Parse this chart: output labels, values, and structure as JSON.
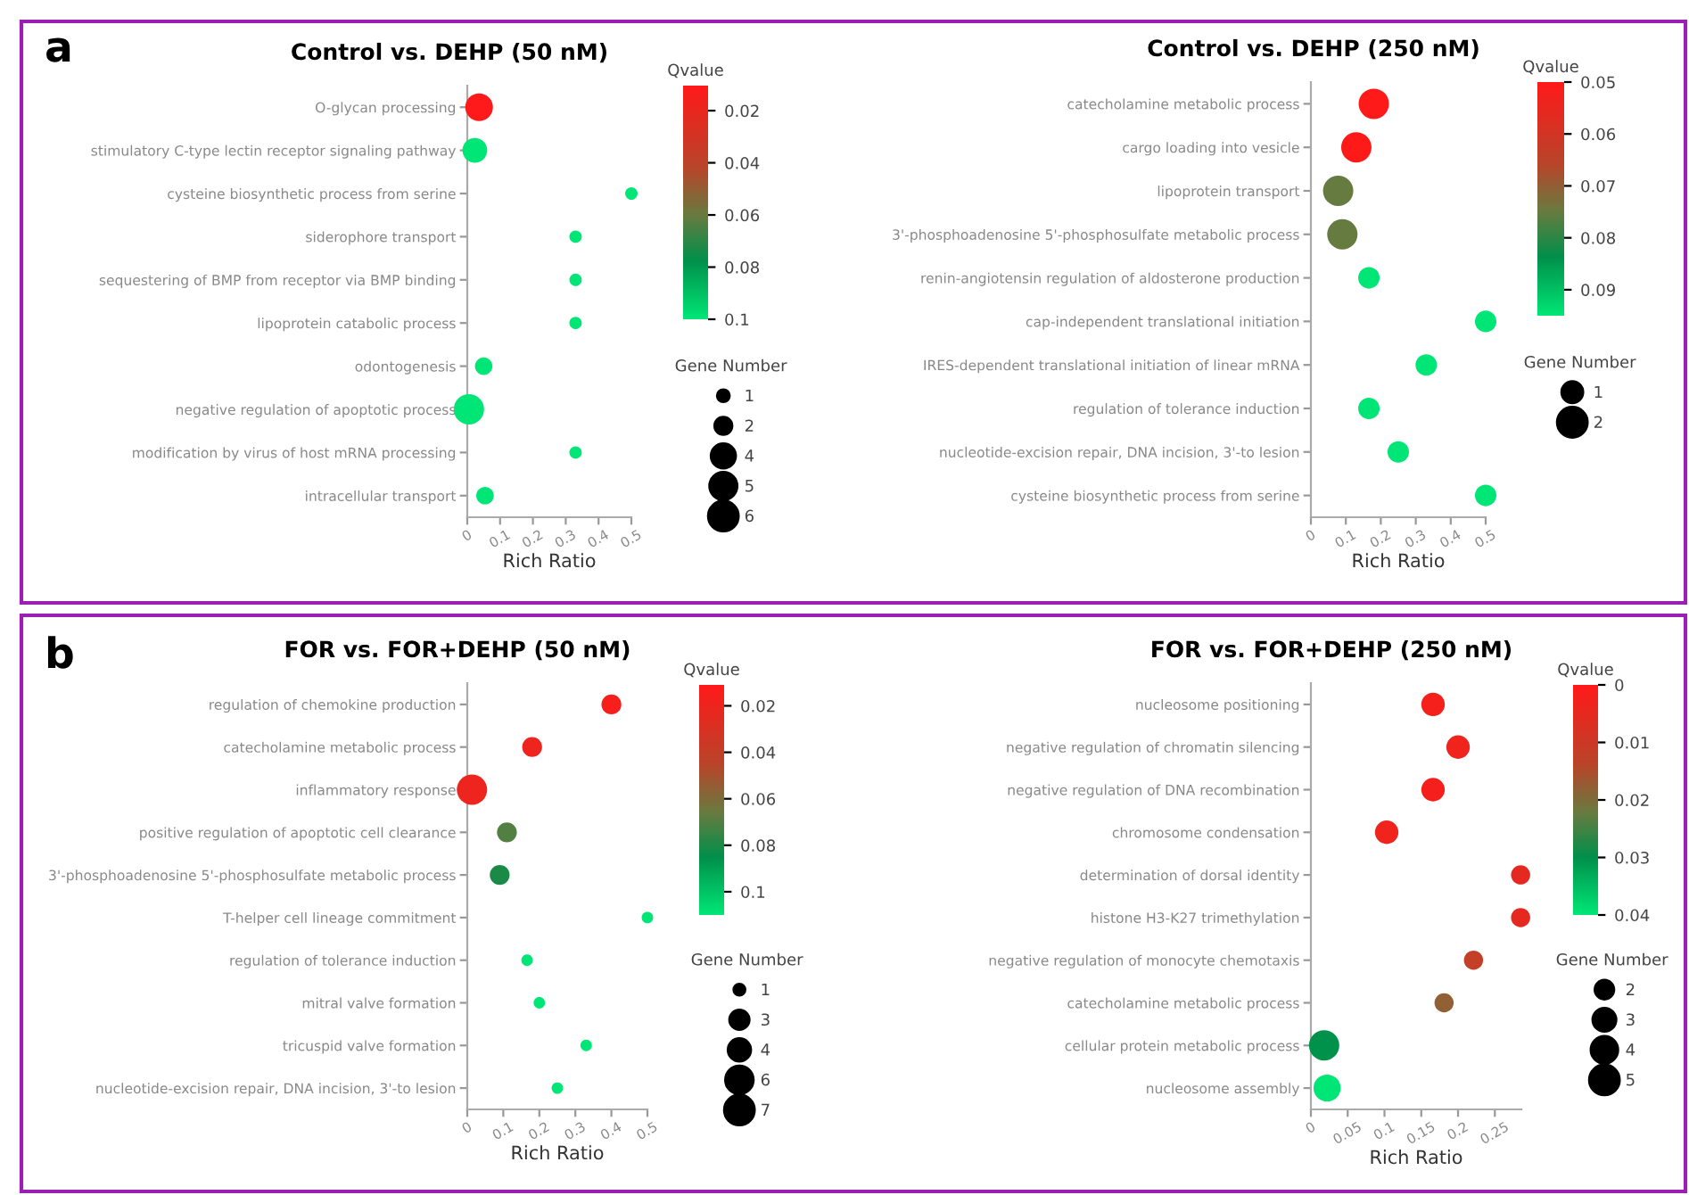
{
  "chart_data": [
    {
      "type": "bubble",
      "orientation": "horizontal",
      "title": "Control vs. DEHP (50 nM)",
      "xlabel": "Rich Ratio",
      "clabel": "Qvalue",
      "legend_title": "Gene Number",
      "annotations": [
        "a"
      ],
      "categories": [
        "O-glycan processing",
        "stimulatory C-type lectin receptor signaling pathway",
        "cysteine biosynthetic process from serine",
        "siderophore transport",
        "sequestering of BMP from receptor via BMP binding",
        "lipoprotein catabolic process",
        "odontogenesis",
        "negative regulation of apoptotic process",
        "modification by virus of host mRNA processing",
        "intracellular transport"
      ],
      "values": [
        0.036,
        0.023,
        0.5,
        0.33,
        0.33,
        0.33,
        0.05,
        0.005,
        0.33,
        0.054
      ],
      "sizes": [
        5,
        4,
        1,
        1,
        1,
        1,
        2,
        6,
        1,
        2
      ],
      "cvalues": [
        0.011,
        0.1,
        0.1,
        0.1,
        0.1,
        0.1,
        0.1,
        0.1,
        0.1,
        0.1
      ],
      "size_legend": [
        1,
        2,
        4,
        5,
        6
      ],
      "xlim": [
        0,
        0.5
      ],
      "xticks": [
        0,
        0.1,
        0.2,
        0.3,
        0.4,
        0.5
      ],
      "clim": [
        0.0104,
        0.1
      ],
      "cticks": [
        0.02,
        0.04,
        0.06,
        0.08,
        0.1
      ],
      "grid": false
    },
    {
      "type": "bubble",
      "orientation": "horizontal",
      "title": "Control vs. DEHP (250 nM)",
      "xlabel": "Rich Ratio",
      "clabel": "Qvalue",
      "legend_title": "Gene Number",
      "categories": [
        "catecholamine metabolic process",
        "cargo loading into vesicle",
        "lipoprotein transport",
        "3'-phosphoadenosine 5'-phosphosulfate metabolic process",
        "renin-angiotensin regulation of aldosterone production",
        "cap-independent translational initiation",
        "IRES-dependent translational initiation of linear mRNA",
        "regulation of tolerance induction",
        "nucleotide-excision repair, DNA incision, 3'-to lesion",
        "cysteine biosynthetic process from serine"
      ],
      "values": [
        0.18,
        0.13,
        0.078,
        0.09,
        0.166,
        0.5,
        0.33,
        0.166,
        0.25,
        0.5
      ],
      "sizes": [
        2,
        2,
        2,
        2,
        1,
        1,
        1,
        1,
        1,
        1
      ],
      "cvalues": [
        0.05,
        0.05,
        0.075,
        0.075,
        0.095,
        0.095,
        0.095,
        0.095,
        0.095,
        0.095
      ],
      "size_legend": [
        1,
        2
      ],
      "xlim": [
        0,
        0.5
      ],
      "xticks": [
        0,
        0.1,
        0.2,
        0.3,
        0.4,
        0.5
      ],
      "clim": [
        0.05,
        0.095
      ],
      "cticks": [
        0.05,
        0.06,
        0.07,
        0.08,
        0.09
      ],
      "grid": false
    },
    {
      "type": "bubble",
      "orientation": "horizontal",
      "title": "FOR vs. FOR+DEHP (50 nM)",
      "xlabel": "Rich Ratio",
      "clabel": "Qvalue",
      "legend_title": "Gene Number",
      "annotations": [
        "b"
      ],
      "categories": [
        "regulation of chemokine production",
        "catecholamine metabolic process",
        "inflammatory response",
        "positive regulation of apoptotic cell clearance",
        "3'-phosphoadenosine 5'-phosphosulfate metabolic process",
        "T-helper cell lineage commitment",
        "regulation of tolerance induction",
        "mitral valve formation",
        "tricuspid valve formation",
        "nucleotide-excision repair, DNA incision, 3'-to lesion"
      ],
      "values": [
        0.4,
        0.18,
        0.013,
        0.11,
        0.09,
        0.5,
        0.166,
        0.2,
        0.33,
        0.25
      ],
      "sizes": [
        3,
        3,
        7,
        3,
        3,
        1,
        1,
        1,
        1,
        1
      ],
      "cvalues": [
        0.015,
        0.02,
        0.02,
        0.07,
        0.08,
        0.11,
        0.11,
        0.11,
        0.11,
        0.11
      ],
      "size_legend": [
        1,
        3,
        4,
        6,
        7
      ],
      "xlim": [
        0,
        0.5
      ],
      "xticks": [
        0,
        0.1,
        0.2,
        0.3,
        0.4,
        0.5
      ],
      "clim": [
        0.011,
        0.11
      ],
      "cticks": [
        0.02,
        0.04,
        0.06,
        0.08,
        0.1
      ],
      "grid": false
    },
    {
      "type": "bubble",
      "orientation": "horizontal",
      "title": "FOR vs. FOR+DEHP (250 nM)",
      "xlabel": "Rich Ratio",
      "clabel": "Qvalue",
      "legend_title": "Gene Number",
      "categories": [
        "nucleosome positioning",
        "negative regulation of chromatin silencing",
        "negative regulation of DNA recombination",
        "chromosome condensation",
        "determination of dorsal identity",
        "histone H3-K27 trimethylation",
        "negative regulation of monocyte chemotaxis",
        "catecholamine metabolic process",
        "cellular protein metabolic process",
        "nucleosome assembly"
      ],
      "values": [
        0.166,
        0.2,
        0.166,
        0.103,
        0.285,
        0.285,
        0.221,
        0.181,
        0.018,
        0.022
      ],
      "sizes": [
        3,
        3,
        3,
        3,
        2,
        2,
        2,
        2,
        5,
        4
      ],
      "cvalues": [
        0.002,
        0.003,
        0.002,
        0.003,
        0.005,
        0.005,
        0.012,
        0.018,
        0.03,
        0.04
      ],
      "size_legend": [
        2,
        3,
        4,
        5
      ],
      "xlim": [
        0,
        0.286
      ],
      "xticks": [
        0,
        0.05,
        0.1,
        0.15,
        0.2,
        0.25
      ],
      "clim": [
        0,
        0.04
      ],
      "cticks": [
        0,
        0.01,
        0.02,
        0.03,
        0.04
      ],
      "grid": false
    }
  ]
}
